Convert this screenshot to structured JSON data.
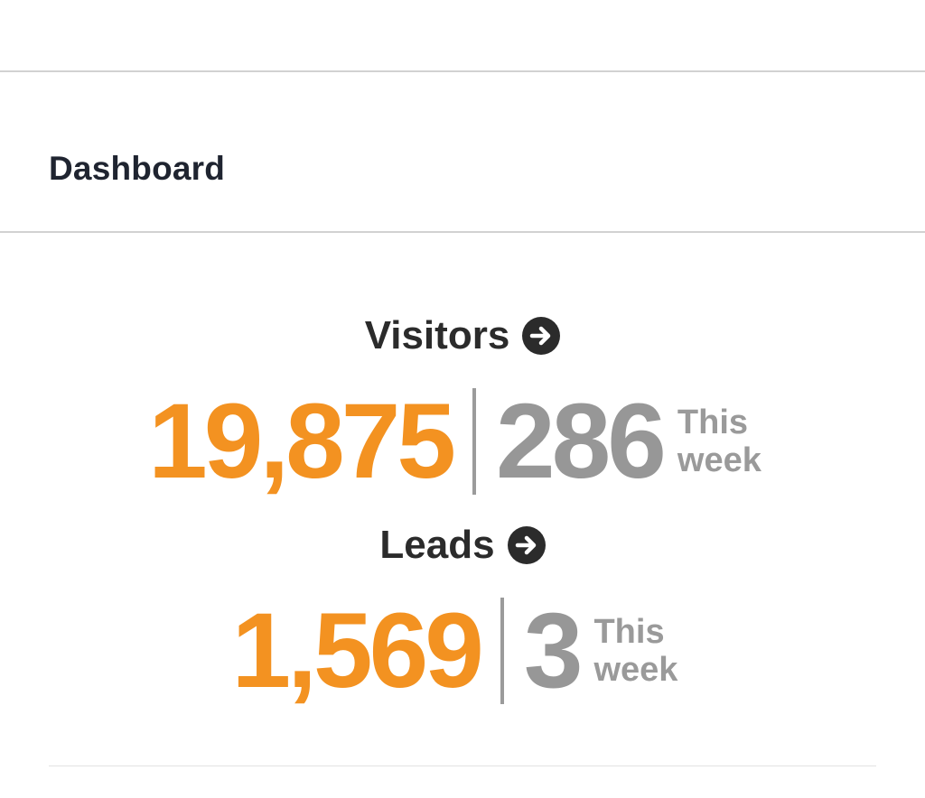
{
  "header": {
    "title": "Dashboard"
  },
  "stats": {
    "visitors": {
      "label": "Visitors",
      "total": "19,875",
      "week_value": "286",
      "week_caption": "This week"
    },
    "leads": {
      "label": "Leads",
      "total": "1,569",
      "week_value": "3",
      "week_caption": "This week"
    }
  },
  "icons": {
    "visitors_link": "arrow-right-circle-icon",
    "leads_link": "arrow-right-circle-icon"
  },
  "colors": {
    "accent_total": "#f39221",
    "muted_week": "#979797",
    "label_dark": "#2b2b2b",
    "title": "#1f2430"
  }
}
